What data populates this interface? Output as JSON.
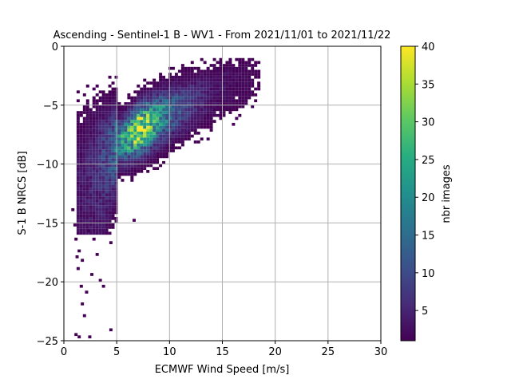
{
  "chart_data": {
    "type": "heatmap",
    "title": "Ascending - Sentinel-1 B - WV1 - From 2021/11/01 to 2021/11/22",
    "xlabel": "ECMWF Wind Speed [m/s]",
    "ylabel": "S-1 B NRCS [dB]",
    "xlim": [
      0,
      30
    ],
    "ylim": [
      -25,
      0
    ],
    "x_ticks": [
      0,
      5,
      10,
      15,
      20,
      25,
      30
    ],
    "x_tick_labels": [
      "0",
      "5",
      "10",
      "15",
      "20",
      "25",
      "30"
    ],
    "y_ticks": [
      0,
      -5,
      -10,
      -15,
      -20,
      -25
    ],
    "y_tick_labels": [
      "0",
      "−5",
      "−10",
      "−15",
      "−20",
      "−25"
    ],
    "grid": true,
    "bin_width_x": 0.3,
    "bin_width_y": 0.25,
    "colorbar": {
      "label": "nbr images",
      "colormap": "viridis",
      "min": 1,
      "max": 40,
      "ticks": [
        5,
        10,
        15,
        20,
        25,
        30,
        35,
        40
      ],
      "tick_labels": [
        "5",
        "10",
        "15",
        "20",
        "25",
        "30",
        "35",
        "40"
      ]
    },
    "density_band": {
      "description_points_speed": [
        1.5,
        3,
        4,
        5,
        6,
        7,
        8,
        9,
        10,
        11,
        12,
        13,
        14,
        15,
        16,
        17,
        18
      ],
      "center_nrcs": [
        -11.0,
        -9.5,
        -9.0,
        -8.3,
        -7.7,
        -7.1,
        -6.6,
        -6.1,
        -5.6,
        -5.2,
        -4.8,
        -4.4,
        -4.0,
        -3.6,
        -3.3,
        -3.0,
        -2.7
      ],
      "peak_count": [
        3,
        6,
        10,
        18,
        28,
        38,
        30,
        22,
        15,
        10,
        7,
        5,
        3,
        3,
        2,
        2,
        1
      ]
    },
    "sparse_points": [
      {
        "x": 0.7,
        "y": -14.0
      },
      {
        "x": 0.9,
        "y": -15.3
      },
      {
        "x": 1.0,
        "y": -16.5
      },
      {
        "x": 1.1,
        "y": -18.0
      },
      {
        "x": 1.2,
        "y": -19.0
      },
      {
        "x": 1.3,
        "y": -17.5
      },
      {
        "x": 1.5,
        "y": -20.5
      },
      {
        "x": 1.6,
        "y": -22.0
      },
      {
        "x": 1.8,
        "y": -23.0
      },
      {
        "x": 1.0,
        "y": -24.6
      },
      {
        "x": 1.3,
        "y": -24.8
      },
      {
        "x": 2.3,
        "y": -24.8
      },
      {
        "x": 2.5,
        "y": -19.5
      },
      {
        "x": 2.0,
        "y": -21.0
      },
      {
        "x": 3.3,
        "y": -20.0
      },
      {
        "x": 3.6,
        "y": -20.5
      },
      {
        "x": 2.7,
        "y": -16.5
      },
      {
        "x": 3.0,
        "y": -17.8
      },
      {
        "x": 4.3,
        "y": -16.8
      },
      {
        "x": 6.5,
        "y": -14.9
      },
      {
        "x": 4.3,
        "y": -24.2
      },
      {
        "x": 1.6,
        "y": -18.3
      },
      {
        "x": 2.2,
        "y": -15.8
      }
    ]
  }
}
